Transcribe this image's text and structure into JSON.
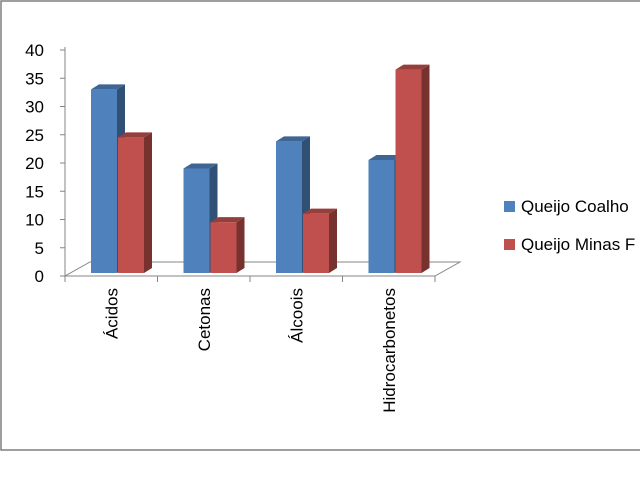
{
  "chart_data": {
    "type": "bar",
    "style": "3d-clustered-column",
    "categories": [
      "Ácidos",
      "Cetonas",
      "Álcoois",
      "Hidrocarbonetos"
    ],
    "series": [
      {
        "name": "Queijo Coalho",
        "values": [
          32.5,
          18.5,
          23.3,
          20.0
        ],
        "color": "#4F81BD"
      },
      {
        "name": "Queijo Minas F",
        "values": [
          24.0,
          9.0,
          10.5,
          36.0
        ],
        "color": "#C0504D"
      }
    ],
    "title": "",
    "xlabel": "",
    "ylabel": "",
    "ylim": [
      0,
      40
    ],
    "yticks": [
      0,
      5,
      10,
      15,
      20,
      25,
      30,
      35,
      40
    ],
    "grid": false,
    "legend_position": "right"
  }
}
